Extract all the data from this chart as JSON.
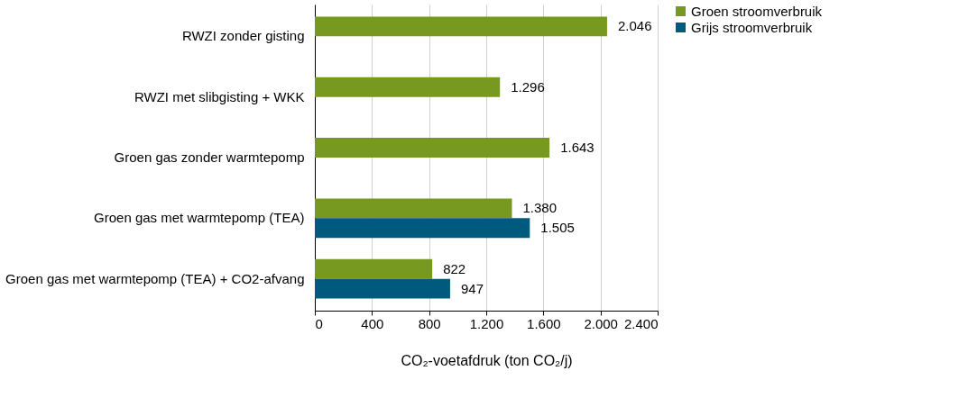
{
  "chart_data": {
    "type": "bar",
    "orientation": "horizontal",
    "xlabel": "CO₂-voetafdruk (ton CO₂/j)",
    "categories": [
      "RWZI zonder gisting",
      "RWZI met slibgisting + WKK",
      "Groen gas zonder warmtepomp",
      "Groen gas met warmtepomp (TEA)",
      "Groen gas met warmtepomp (TEA) + CO2-afvang"
    ],
    "series": [
      {
        "name": "Groen stroomverbruik",
        "color": "#77991f",
        "values": [
          2046,
          1296,
          1643,
          1380,
          822
        ],
        "value_labels": [
          "2.046",
          "1.296",
          "1.643",
          "1.380",
          "822"
        ]
      },
      {
        "name": "Grijs stroomverbruik",
        "color": "#005a7e",
        "values": [
          null,
          null,
          null,
          1505,
          947
        ],
        "value_labels": [
          null,
          null,
          null,
          "1.505",
          "947"
        ]
      }
    ],
    "xlim": [
      0,
      2400
    ],
    "xticks": [
      0,
      400,
      800,
      {
        "value": 1200,
        "label": "1.200"
      },
      {
        "value": 1600,
        "label": "1.600"
      },
      {
        "value": 2000,
        "label": "2.000"
      },
      {
        "value": 2400,
        "label": "2.400"
      }
    ],
    "grid": "x",
    "legend": "right"
  }
}
